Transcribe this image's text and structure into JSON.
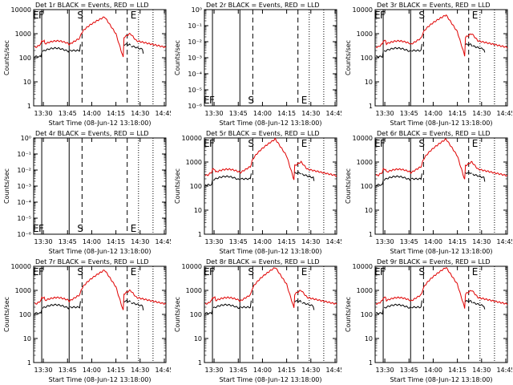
{
  "chart_data": [
    {
      "type": "line",
      "title": "Det 1r BLACK = Events, RED = LLD",
      "ylabel": "Counts/sec",
      "xlabel": "Start Time (08-Jun-12 13:18:00)",
      "y_scale": "log",
      "ylim": [
        1,
        10000
      ],
      "yticks": [
        "1",
        "10",
        "100",
        "1000",
        "10000"
      ],
      "xticks": [
        "13:30",
        "13:45",
        "14:00",
        "14:15",
        "14:30",
        "14:45"
      ],
      "x_range_min": [
        6,
        88
      ],
      "markers": [
        "F",
        "S",
        "E"
      ],
      "marker_min": [
        9,
        33,
        66
      ],
      "solid_lines_min": [
        11,
        28
      ],
      "dashed_lines_min": [
        36,
        64
      ],
      "dotted_lines_min": [
        71,
        80
      ],
      "empty": false,
      "peak": 5000
    },
    {
      "type": "line",
      "title": "Det 2r BLACK = Events, RED = LLD",
      "ylabel": "Counts/sec",
      "xlabel": "Start Time (08-Jun-12 13:18:00)",
      "y_scale": "log",
      "ylim": [
        1e-06,
        1
      ],
      "yticks": [
        "10⁻⁶",
        "10⁻⁵",
        "10⁻⁴",
        "10⁻³",
        "10⁻²",
        "10⁻¹",
        "10⁰"
      ],
      "xticks": [
        "13:30",
        "13:45",
        "14:00",
        "14:15",
        "14:30",
        "14:45"
      ],
      "x_range_min": [
        6,
        88
      ],
      "markers": [
        "F",
        "S",
        "E"
      ],
      "marker_min": [
        9,
        33,
        66
      ],
      "solid_lines_min": [
        11,
        28
      ],
      "dashed_lines_min": [
        36,
        64
      ],
      "dotted_lines_min": [
        71,
        80
      ],
      "empty": true,
      "peak": 0
    },
    {
      "type": "line",
      "title": "Det 3r BLACK = Events, RED = LLD",
      "ylabel": "Counts/sec",
      "xlabel": "Start Time (08-Jun-12 13:18:00)",
      "y_scale": "log",
      "ylim": [
        1,
        10000
      ],
      "yticks": [
        "1",
        "10",
        "100",
        "1000",
        "10000"
      ],
      "xticks": [
        "13:30",
        "13:45",
        "14:00",
        "14:15",
        "14:30",
        "14:45"
      ],
      "x_range_min": [
        6,
        88
      ],
      "markers": [
        "F",
        "S",
        "E"
      ],
      "marker_min": [
        9,
        33,
        66
      ],
      "solid_lines_min": [
        11,
        28
      ],
      "dashed_lines_min": [
        36,
        64
      ],
      "dotted_lines_min": [
        71,
        80
      ],
      "empty": false,
      "peak": 6000
    },
    {
      "type": "line",
      "title": "Det 4r BLACK = Events, RED = LLD",
      "ylabel": "Counts/sec",
      "xlabel": "Start Time (08-Jun-12 13:18:00)",
      "y_scale": "log",
      "ylim": [
        1e-06,
        1
      ],
      "yticks": [
        "10⁻⁶",
        "10⁻⁵",
        "10⁻⁴",
        "10⁻³",
        "10⁻²",
        "10⁻¹",
        "10⁰"
      ],
      "xticks": [
        "13:30",
        "13:45",
        "14:00",
        "14:15",
        "14:30",
        "14:45"
      ],
      "x_range_min": [
        6,
        88
      ],
      "markers": [
        "F",
        "S",
        "E"
      ],
      "marker_min": [
        9,
        33,
        66
      ],
      "solid_lines_min": [
        11,
        28
      ],
      "dashed_lines_min": [
        36,
        64
      ],
      "dotted_lines_min": [
        71,
        80
      ],
      "empty": true,
      "peak": 0
    },
    {
      "type": "line",
      "title": "Det 5r BLACK = Events, RED = LLD",
      "ylabel": "Counts/sec",
      "xlabel": "Start Time (08-Jun-12 13:18:00)",
      "y_scale": "log",
      "ylim": [
        1,
        10000
      ],
      "yticks": [
        "1",
        "10",
        "100",
        "1000",
        "10000"
      ],
      "xticks": [
        "13:30",
        "13:45",
        "14:00",
        "14:15",
        "14:30",
        "14:45"
      ],
      "x_range_min": [
        6,
        88
      ],
      "markers": [
        "F",
        "S",
        "E"
      ],
      "marker_min": [
        9,
        33,
        66
      ],
      "solid_lines_min": [
        11,
        28
      ],
      "dashed_lines_min": [
        36,
        64
      ],
      "dotted_lines_min": [
        71,
        80
      ],
      "empty": false,
      "peak": 9000
    },
    {
      "type": "line",
      "title": "Det 6r BLACK = Events, RED = LLD",
      "ylabel": "Counts/sec",
      "xlabel": "Start Time (08-Jun-12 13:18:00)",
      "y_scale": "log",
      "ylim": [
        1,
        10000
      ],
      "yticks": [
        "1",
        "10",
        "100",
        "1000",
        "10000"
      ],
      "xticks": [
        "13:30",
        "13:45",
        "14:00",
        "14:15",
        "14:30",
        "14:45"
      ],
      "x_range_min": [
        6,
        88
      ],
      "markers": [
        "F",
        "S",
        "E"
      ],
      "marker_min": [
        9,
        33,
        66
      ],
      "solid_lines_min": [
        11,
        28
      ],
      "dashed_lines_min": [
        36,
        64
      ],
      "dotted_lines_min": [
        71,
        80
      ],
      "empty": false,
      "peak": 9000
    },
    {
      "type": "line",
      "title": "Det 7r BLACK = Events, RED = LLD",
      "ylabel": "Counts/sec",
      "xlabel": "Start Time (08-Jun-12 13:18:00)",
      "y_scale": "log",
      "ylim": [
        1,
        10000
      ],
      "yticks": [
        "1",
        "10",
        "100",
        "1000",
        "10000"
      ],
      "xticks": [
        "13:30",
        "13:45",
        "14:00",
        "14:15",
        "14:30",
        "14:45"
      ],
      "x_range_min": [
        6,
        88
      ],
      "markers": [
        "F",
        "S",
        "E"
      ],
      "marker_min": [
        9,
        33,
        66
      ],
      "solid_lines_min": [
        11,
        28
      ],
      "dashed_lines_min": [
        36,
        64
      ],
      "dotted_lines_min": [
        71,
        80
      ],
      "empty": false,
      "peak": 7000
    },
    {
      "type": "line",
      "title": "Det 8r BLACK = Events, RED = LLD",
      "ylabel": "Counts/sec",
      "xlabel": "Start Time (08-Jun-12 13:18:00)",
      "y_scale": "log",
      "ylim": [
        1,
        10000
      ],
      "yticks": [
        "1",
        "10",
        "100",
        "1000",
        "10000"
      ],
      "xticks": [
        "13:30",
        "13:45",
        "14:00",
        "14:15",
        "14:30",
        "14:45"
      ],
      "x_range_min": [
        6,
        88
      ],
      "markers": [
        "F",
        "S",
        "E"
      ],
      "marker_min": [
        9,
        33,
        66
      ],
      "solid_lines_min": [
        11,
        28
      ],
      "dashed_lines_min": [
        36,
        64
      ],
      "dotted_lines_min": [
        71,
        80
      ],
      "empty": false,
      "peak": 9000
    },
    {
      "type": "line",
      "title": "Det 9r BLACK = Events, RED = LLD",
      "ylabel": "Counts/sec",
      "xlabel": "Start Time (08-Jun-12 13:18:00)",
      "y_scale": "log",
      "ylim": [
        1,
        10000
      ],
      "yticks": [
        "1",
        "10",
        "100",
        "1000",
        "10000"
      ],
      "xticks": [
        "13:30",
        "13:45",
        "14:00",
        "14:15",
        "14:30",
        "14:45"
      ],
      "x_range_min": [
        6,
        88
      ],
      "markers": [
        "F",
        "S",
        "E"
      ],
      "marker_min": [
        9,
        33,
        66
      ],
      "solid_lines_min": [
        11,
        28
      ],
      "dashed_lines_min": [
        36,
        64
      ],
      "dotted_lines_min": [
        71,
        80
      ],
      "empty": false,
      "peak": 9000
    }
  ],
  "colors": {
    "events": "#000000",
    "lld": "#e00000",
    "axes": "#000000",
    "background": "#ffffff"
  }
}
